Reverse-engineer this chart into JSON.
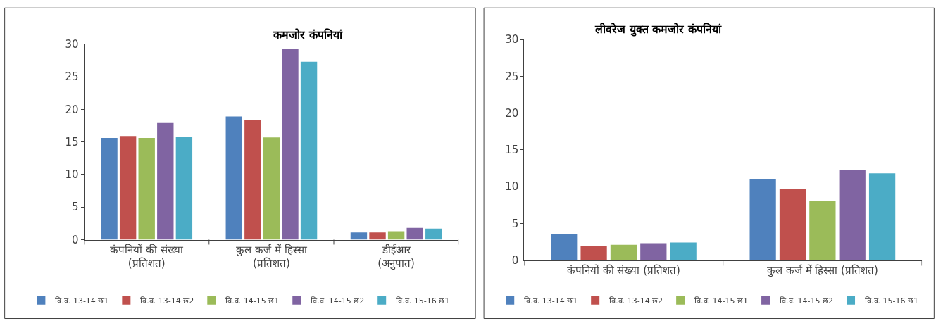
{
  "chart_data": [
    {
      "type": "bar",
      "title": "कमजोर कंपनियां",
      "categories": [
        "कंपनियों की संख्या\n(प्रतिशत)",
        "कुल कर्ज में हिस्सा\n(प्रतिशत)",
        "डीईआर\n(अनुपात)"
      ],
      "series": [
        {
          "name": "वि.व. 13-14 छ1",
          "color": "#4f81bd",
          "values": [
            15.6,
            18.9,
            1.1
          ]
        },
        {
          "name": "वि.व. 13-14 छ2",
          "color": "#c0504d",
          "values": [
            15.9,
            18.4,
            1.1
          ]
        },
        {
          "name": "वि.व. 14-15 छ1",
          "color": "#9bbb59",
          "values": [
            15.6,
            15.7,
            1.3
          ]
        },
        {
          "name": "वि.व. 14-15 छ2",
          "color": "#8064a2",
          "values": [
            17.9,
            29.3,
            1.8
          ]
        },
        {
          "name": "वि.व. 15-16 छ1",
          "color": "#4bacc6",
          "values": [
            15.8,
            27.3,
            1.7
          ]
        }
      ],
      "ylim": [
        0,
        30
      ],
      "yticks": [
        0,
        5,
        10,
        15,
        20,
        25,
        30
      ],
      "legend": "bottom"
    },
    {
      "type": "bar",
      "title": "लीवरेज युक्त कमजोर कंपनियां",
      "categories": [
        "कंपनियों की संख्या (प्रतिशत)",
        "कुल कर्ज में हिस्सा (प्रतिशत)"
      ],
      "series": [
        {
          "name": "वि.व. 13-14 छ1",
          "color": "#4f81bd",
          "values": [
            3.6,
            11.0
          ]
        },
        {
          "name": "वि.व. 13-14 छ2",
          "color": "#c0504d",
          "values": [
            1.9,
            9.7
          ]
        },
        {
          "name": "वि.व. 14-15 छ1",
          "color": "#9bbb59",
          "values": [
            2.1,
            8.1
          ]
        },
        {
          "name": "वि.व. 14-15 छ2",
          "color": "#8064a2",
          "values": [
            2.3,
            12.3
          ]
        },
        {
          "name": "वि.व. 15-16 छ1",
          "color": "#4bacc6",
          "values": [
            2.4,
            11.8
          ]
        }
      ],
      "ylim": [
        0,
        30
      ],
      "yticks": [
        0,
        5,
        10,
        15,
        20,
        25,
        30
      ],
      "legend": "bottom"
    }
  ]
}
